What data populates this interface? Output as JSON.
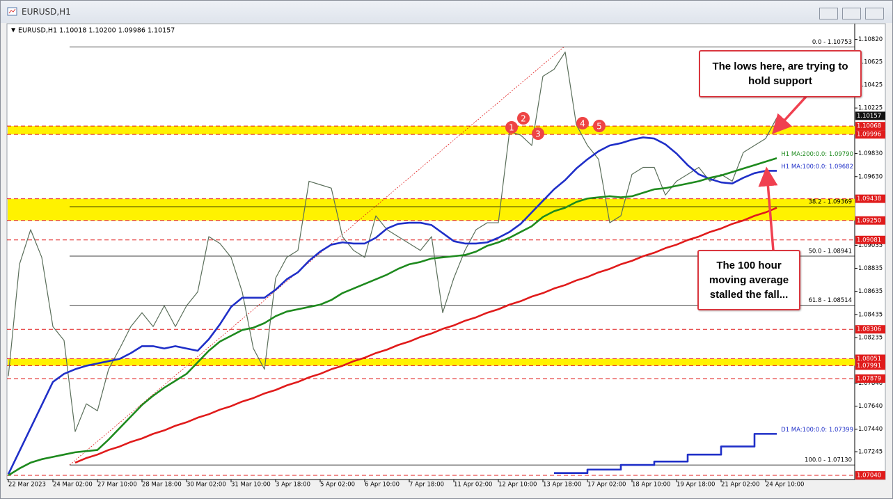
{
  "window_title": "EURUSD,H1",
  "chart_data": {
    "type": "line",
    "header": "EURUSD,H1  1.10018 1.10200 1.09986 1.10157",
    "categories": [
      "22 Mar 2023",
      null,
      null,
      null,
      "24 Mar 02:00",
      null,
      null,
      null,
      "27 Mar 10:00",
      null,
      null,
      null,
      "28 Mar 18:00",
      null,
      null,
      null,
      "30 Mar 02:00",
      null,
      null,
      null,
      "31 Mar 10:00",
      null,
      null,
      null,
      "3 Apr 18:00",
      null,
      null,
      null,
      "5 Apr 02:00",
      null,
      null,
      null,
      "6 Apr 10:00",
      null,
      null,
      null,
      "7 Apr 18:00",
      null,
      null,
      null,
      "11 Apr 02:00",
      null,
      null,
      null,
      "12 Apr 10:00",
      null,
      null,
      null,
      "13 Apr 18:00",
      null,
      null,
      null,
      "17 Apr 02:00",
      null,
      null,
      null,
      "18 Apr 10:00",
      null,
      null,
      null,
      "19 Apr 18:00",
      null,
      null,
      null,
      "21 Apr 02:00",
      null,
      null,
      null,
      "24 Apr 10:00",
      null
    ],
    "ylim": [
      1.0701,
      1.1095
    ],
    "yticks": [
      {
        "value": 1.1082,
        "label": "1.10820"
      },
      {
        "value": 1.10625,
        "label": "1.10625"
      },
      {
        "value": 1.10425,
        "label": "1.10425"
      },
      {
        "value": 1.10225,
        "label": "1.10225"
      },
      {
        "value": 1.0983,
        "label": "1.09830"
      },
      {
        "value": 1.0963,
        "label": "1.09630"
      },
      {
        "value": 1.09035,
        "label": "1.09035"
      },
      {
        "value": 1.08835,
        "label": "1.08835"
      },
      {
        "value": 1.08635,
        "label": "1.08635"
      },
      {
        "value": 1.08435,
        "label": "1.08435"
      },
      {
        "value": 1.08235,
        "label": "1.08235"
      },
      {
        "value": 1.0784,
        "label": "1.07840"
      },
      {
        "value": 1.0764,
        "label": "1.07640"
      },
      {
        "value": 1.0744,
        "label": "1.07440"
      },
      {
        "value": 1.07245,
        "label": "1.07245"
      }
    ],
    "grid": false,
    "series": [
      {
        "name": "EURUSD,H1",
        "color": "#5a6e5a",
        "values": [
          1.079,
          1.0887,
          1.0917,
          1.0893,
          1.0833,
          1.0821,
          1.0742,
          1.0766,
          1.076,
          1.0796,
          1.0814,
          1.0833,
          1.0845,
          1.0833,
          1.0851,
          1.0833,
          1.0851,
          1.0863,
          1.0911,
          1.0905,
          1.0893,
          1.0863,
          1.0814,
          1.0796,
          1.0875,
          1.0893,
          1.0899,
          1.0959,
          1.0956,
          1.0953,
          1.0911,
          1.0899,
          1.0893,
          1.0929,
          1.0917,
          1.0911,
          1.0905,
          1.0899,
          1.0911,
          1.0845,
          1.0875,
          1.0899,
          1.0917,
          1.0923,
          1.0923,
          1.1002,
          1.0999,
          1.099,
          1.105,
          1.1056,
          1.1071,
          1.1008,
          1.099,
          1.0978,
          1.0923,
          1.0929,
          1.0965,
          1.0971,
          1.0971,
          1.0947,
          1.0959,
          1.0965,
          1.0971,
          1.0959,
          1.0965,
          1.0959,
          1.0984,
          1.099,
          1.0996,
          1.1014
        ]
      },
      {
        "name": "H1 MA:100:0.0: 1.09682",
        "color": "#1f2fc8",
        "values": [
          1.0705,
          1.0725,
          1.0745,
          1.0765,
          1.0785,
          1.0792,
          1.0796,
          1.0799,
          1.0801,
          1.0803,
          1.0805,
          1.081,
          1.0816,
          1.0816,
          1.0814,
          1.0816,
          1.0814,
          1.0812,
          1.0822,
          1.0835,
          1.085,
          1.0858,
          1.0858,
          1.0858,
          1.0865,
          1.0874,
          1.088,
          1.089,
          1.0898,
          1.0904,
          1.0906,
          1.0905,
          1.0905,
          1.091,
          1.0918,
          1.0922,
          1.0923,
          1.0923,
          1.0921,
          1.0914,
          1.0907,
          1.0905,
          1.0905,
          1.0906,
          1.091,
          1.0915,
          1.0922,
          1.0932,
          1.0942,
          1.0952,
          1.096,
          1.097,
          1.0978,
          1.0985,
          1.099,
          1.0992,
          1.0995,
          1.0997,
          1.0996,
          1.0991,
          1.0983,
          1.0973,
          1.0965,
          1.0961,
          1.0958,
          1.0957,
          1.0962,
          1.0966,
          1.0968,
          1.0968
        ]
      },
      {
        "name": "H1 MA:200:0.0: 1.09790",
        "color": "#1e8a1e",
        "values": [
          1.0704,
          1.071,
          1.0715,
          1.0718,
          1.072,
          1.0722,
          1.0724,
          1.0725,
          1.0726,
          1.0735,
          1.0745,
          1.0755,
          1.0765,
          1.0773,
          1.078,
          1.0786,
          1.0792,
          1.0802,
          1.0812,
          1.082,
          1.0825,
          1.083,
          1.0832,
          1.0836,
          1.0842,
          1.0846,
          1.0848,
          1.085,
          1.0852,
          1.0856,
          1.0862,
          1.0866,
          1.087,
          1.0874,
          1.0878,
          1.0883,
          1.0887,
          1.0889,
          1.0892,
          1.0893,
          1.0894,
          1.0895,
          1.0898,
          1.0903,
          1.0906,
          1.091,
          1.0915,
          1.092,
          1.0928,
          1.0933,
          1.0936,
          1.0941,
          1.0944,
          1.0945,
          1.0946,
          1.0945,
          1.0946,
          1.0949,
          1.0952,
          1.0953,
          1.0955,
          1.0957,
          1.0959,
          1.0962,
          1.0964,
          1.0967,
          1.097,
          1.0973,
          1.0976,
          1.0979
        ]
      },
      {
        "name": "D1 MA:100:0.0: 1.07399",
        "color": "#1f2fc8",
        "step": true,
        "values": [
          null,
          null,
          null,
          null,
          null,
          null,
          null,
          null,
          null,
          null,
          null,
          null,
          null,
          null,
          null,
          null,
          null,
          null,
          null,
          null,
          null,
          null,
          null,
          null,
          null,
          null,
          null,
          null,
          null,
          null,
          null,
          null,
          null,
          null,
          null,
          null,
          null,
          null,
          null,
          null,
          null,
          null,
          null,
          null,
          null,
          null,
          null,
          null,
          null,
          1.0706,
          1.0706,
          1.0706,
          1.0709,
          1.0709,
          1.0709,
          1.0713,
          1.0713,
          1.0713,
          1.0716,
          1.0716,
          1.0716,
          1.0722,
          1.0722,
          1.0722,
          1.0729,
          1.0729,
          1.0729,
          1.074,
          1.074,
          1.074
        ]
      },
      {
        "color": "#e01b1b",
        "values": [
          null,
          null,
          null,
          null,
          null,
          null,
          1.0715,
          1.0719,
          1.0722,
          1.0726,
          1.0729,
          1.0733,
          1.0736,
          1.074,
          1.0743,
          1.0747,
          1.075,
          1.0754,
          1.0757,
          1.0761,
          1.0764,
          1.0768,
          1.0771,
          1.0775,
          1.0778,
          1.0782,
          1.0785,
          1.0789,
          1.0792,
          1.0796,
          1.0799,
          1.0803,
          1.0806,
          1.081,
          1.0813,
          1.0817,
          1.082,
          1.0824,
          1.0827,
          1.0831,
          1.0834,
          1.0838,
          1.0841,
          1.0845,
          1.0848,
          1.0852,
          1.0855,
          1.0859,
          1.0862,
          1.0866,
          1.0869,
          1.0873,
          1.0876,
          1.088,
          1.0883,
          1.0887,
          1.089,
          1.0894,
          1.0897,
          1.0901,
          1.0904,
          1.0908,
          1.0911,
          1.0915,
          1.0918,
          1.0922,
          1.0925,
          1.0929,
          1.0932,
          1.0936
        ]
      }
    ],
    "levels": [
      {
        "value": 1.10157,
        "label": "1.10157",
        "color": "#111111",
        "line": false
      },
      {
        "value": 1.10068,
        "label": "1.10068",
        "color": "#e01b1b",
        "line": true
      },
      {
        "value": 1.09996,
        "label": "1.09996",
        "color": "#e01b1b",
        "line": true
      },
      {
        "value": 1.09438,
        "label": "1.09438",
        "color": "#e01b1b",
        "line": true
      },
      {
        "value": 1.0925,
        "label": "1.09250",
        "color": "#e01b1b",
        "line": true
      },
      {
        "value": 1.09081,
        "label": "1.09081",
        "color": "#e01b1b",
        "line": true
      },
      {
        "value": 1.08306,
        "label": "1.08306",
        "color": "#e01b1b",
        "line": true
      },
      {
        "value": 1.08051,
        "label": "1.08051",
        "color": "#e01b1b",
        "line": true
      },
      {
        "value": 1.07991,
        "label": "1.07991",
        "color": "#e01b1b",
        "line": true
      },
      {
        "value": 1.07879,
        "label": "1.07879",
        "color": "#e01b1b",
        "line": true
      },
      {
        "value": 1.0704,
        "label": "1.07040",
        "color": "#e01b1b",
        "line": true
      }
    ],
    "zones": [
      {
        "from": 1.09996,
        "to": 1.10068
      },
      {
        "from": 1.0925,
        "to": 1.09438
      },
      {
        "from": 1.07991,
        "to": 1.08051
      }
    ],
    "zone_color": "#fff200",
    "fibonacci": [
      {
        "value": 1.10753,
        "label": "0.0 - 1.10753"
      },
      {
        "value": 1.09369,
        "label": "38.2 - 1.09369"
      },
      {
        "value": 1.08941,
        "label": "50.0 - 1.08941"
      },
      {
        "value": 1.08514,
        "label": "61.8 - 1.08514"
      },
      {
        "value": 1.0713,
        "label": "100.0 - 1.07130"
      }
    ],
    "markers": [
      "1",
      "2",
      "3",
      "4",
      "5"
    ],
    "annotations": [
      "The lows here, are trying to hold support",
      "The 100 hour moving average stalled the fall..."
    ]
  }
}
